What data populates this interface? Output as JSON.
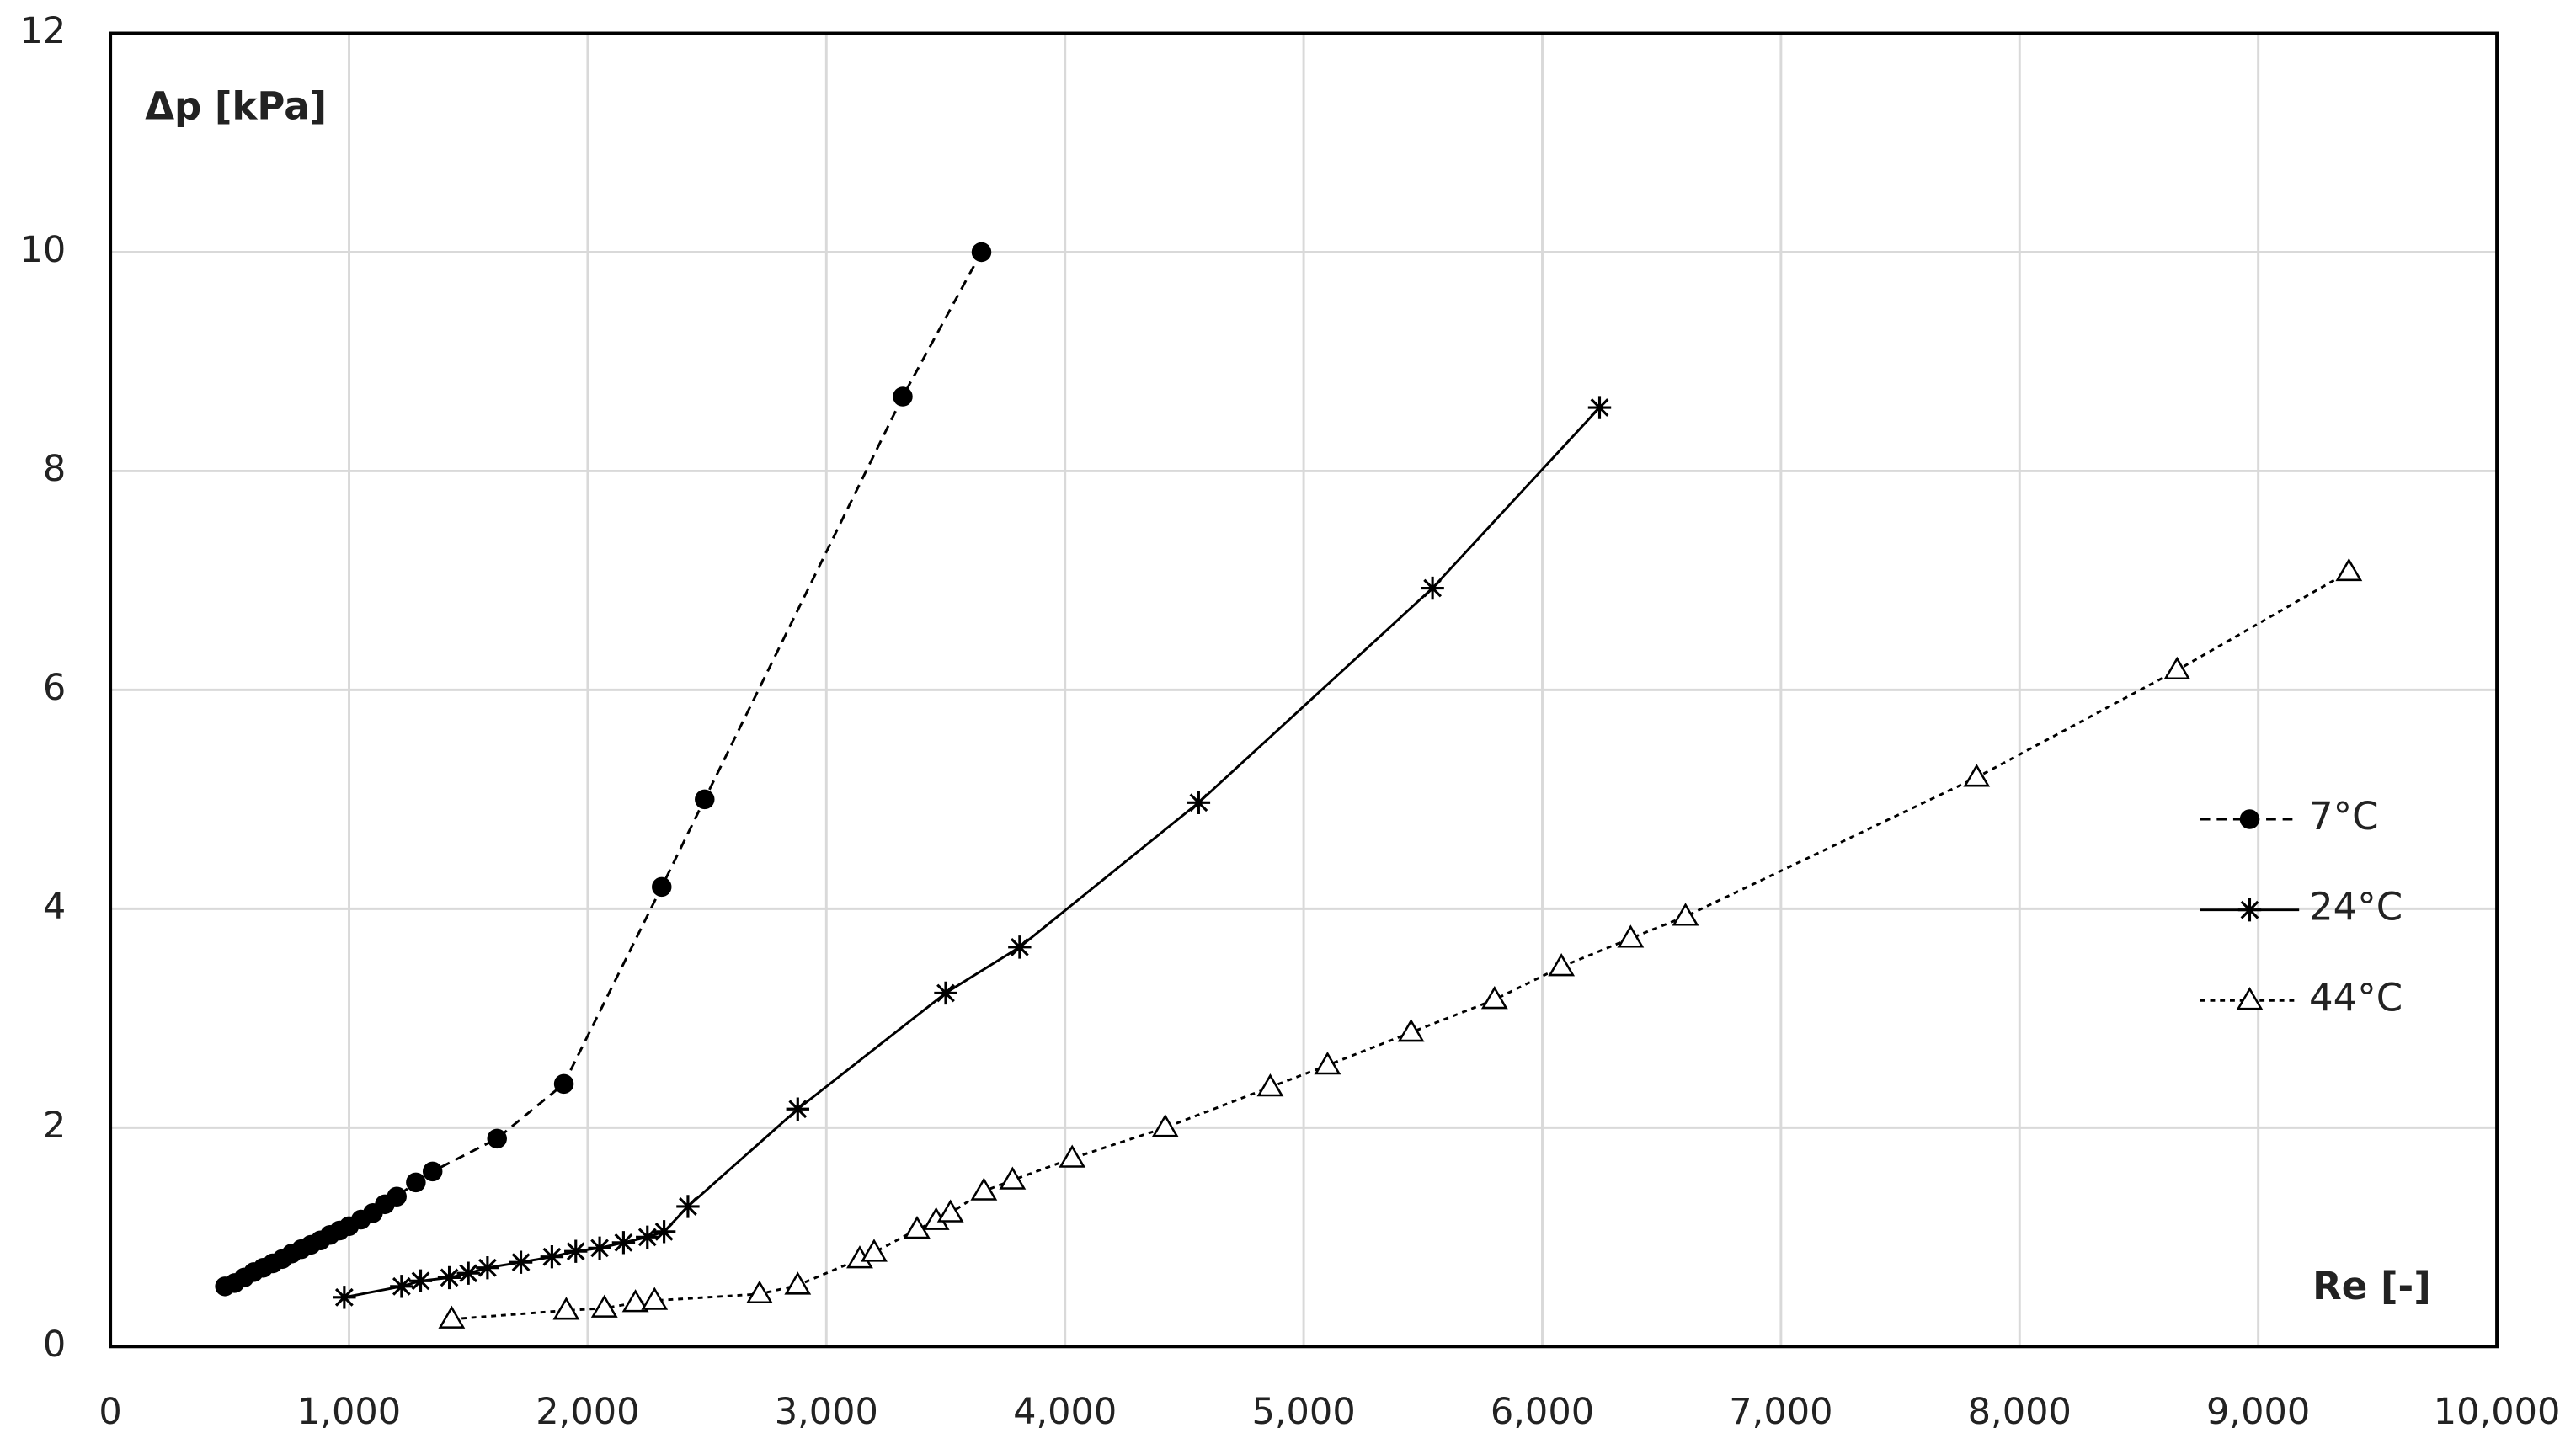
{
  "chart_data": {
    "type": "line",
    "x_label": "Re [-]",
    "y_label": "Δp [kPa]",
    "xlim": [
      0,
      10000
    ],
    "ylim": [
      0,
      12
    ],
    "xticks": [
      0,
      {
        "value": 1000,
        "label": "1,000"
      },
      {
        "value": 2000,
        "label": "2,000"
      },
      {
        "value": 3000,
        "label": "3,000"
      },
      {
        "value": 4000,
        "label": "4,000"
      },
      {
        "value": 5000,
        "label": "5,000"
      },
      {
        "value": 6000,
        "label": "6,000"
      },
      {
        "value": 7000,
        "label": "7,000"
      },
      {
        "value": 8000,
        "label": "8,000"
      },
      {
        "value": 9000,
        "label": "9,000"
      },
      {
        "value": 10000,
        "label": "10,000"
      }
    ],
    "yticks": [
      0,
      2,
      4,
      6,
      8,
      10,
      12
    ],
    "grid": true,
    "legend": "right",
    "series": [
      {
        "name": "7°C",
        "color": "#000000",
        "dash": "dashed",
        "marker": "circle",
        "x": [
          480,
          520,
          560,
          600,
          640,
          680,
          720,
          760,
          800,
          840,
          880,
          920,
          960,
          1000,
          1050,
          1100,
          1150,
          1200,
          1280,
          1350,
          1620,
          1900,
          2310,
          2490,
          3320,
          3650
        ],
        "values": [
          0.55,
          0.58,
          0.63,
          0.68,
          0.72,
          0.76,
          0.8,
          0.85,
          0.89,
          0.93,
          0.97,
          1.02,
          1.06,
          1.1,
          1.16,
          1.22,
          1.3,
          1.37,
          1.5,
          1.6,
          1.9,
          2.4,
          4.2,
          5.0,
          8.68,
          10.0
        ]
      },
      {
        "name": "24°C",
        "color": "#000000",
        "dash": "solid",
        "marker": "star",
        "x": [
          980,
          1220,
          1300,
          1420,
          1500,
          1580,
          1720,
          1850,
          1950,
          2050,
          2150,
          2250,
          2320,
          2420,
          2880,
          3500,
          3810,
          4560,
          5540,
          6240
        ],
        "values": [
          0.45,
          0.55,
          0.6,
          0.63,
          0.67,
          0.72,
          0.77,
          0.82,
          0.87,
          0.9,
          0.95,
          1.0,
          1.05,
          1.28,
          2.17,
          3.23,
          3.65,
          4.97,
          6.93,
          8.58
        ]
      },
      {
        "name": "44°C",
        "color": "#000000",
        "dash": "dotted",
        "marker": "triangle",
        "x": [
          1430,
          1910,
          2070,
          2200,
          2280,
          2720,
          2880,
          3140,
          3200,
          3380,
          3460,
          3520,
          3660,
          3780,
          4030,
          4420,
          4860,
          5100,
          5450,
          5800,
          6080,
          6370,
          6600,
          7820,
          8660,
          9380
        ],
        "values": [
          0.25,
          0.33,
          0.35,
          0.4,
          0.42,
          0.48,
          0.56,
          0.8,
          0.86,
          1.07,
          1.15,
          1.22,
          1.42,
          1.52,
          1.72,
          2.0,
          2.37,
          2.57,
          2.87,
          3.17,
          3.47,
          3.73,
          3.93,
          5.2,
          6.18,
          7.08
        ]
      }
    ]
  }
}
